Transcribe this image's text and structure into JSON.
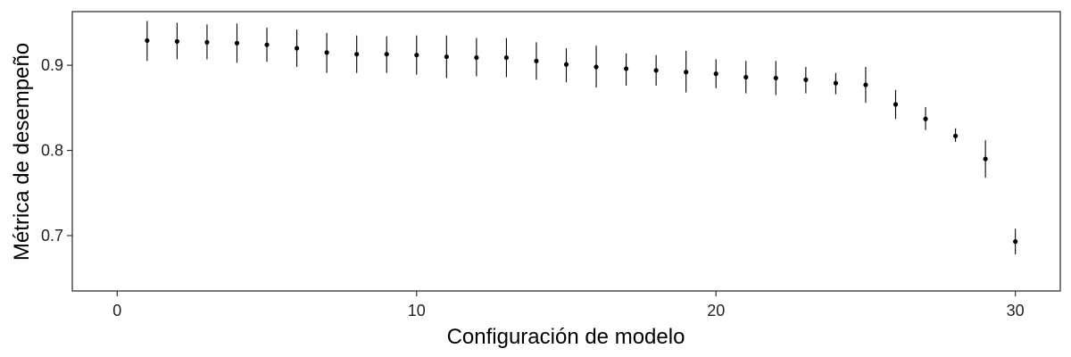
{
  "chart_data": {
    "type": "scatter",
    "title": "",
    "xlabel": "Configuración de modelo",
    "ylabel": "Métrica de desempeño",
    "xlim": [
      -1.5,
      31.5
    ],
    "ylim": [
      0.635,
      0.963
    ],
    "xticks": [
      0,
      10,
      20,
      30
    ],
    "yticks": [
      0.7,
      0.8,
      0.9
    ],
    "xtick_labels": [
      "0",
      "10",
      "20",
      "30"
    ],
    "ytick_labels": [
      "0.7",
      "0.8",
      "0.9"
    ],
    "grid": false,
    "legend": "none",
    "series": [
      {
        "x": [
          1,
          2,
          3,
          4,
          5,
          6,
          7,
          8,
          9,
          10,
          11,
          12,
          13,
          14,
          15,
          16,
          17,
          18,
          19,
          20,
          21,
          22,
          23,
          24,
          25,
          26,
          27,
          28,
          29,
          30
        ],
        "y": [
          0.929,
          0.928,
          0.927,
          0.926,
          0.924,
          0.92,
          0.915,
          0.913,
          0.913,
          0.912,
          0.91,
          0.909,
          0.909,
          0.905,
          0.901,
          0.898,
          0.896,
          0.894,
          0.892,
          0.89,
          0.886,
          0.885,
          0.883,
          0.879,
          0.877,
          0.854,
          0.837,
          0.817,
          0.79,
          0.693
        ],
        "y_low": [
          0.905,
          0.907,
          0.907,
          0.903,
          0.904,
          0.898,
          0.891,
          0.891,
          0.891,
          0.889,
          0.885,
          0.887,
          0.886,
          0.883,
          0.88,
          0.874,
          0.876,
          0.876,
          0.868,
          0.873,
          0.867,
          0.865,
          0.867,
          0.866,
          0.856,
          0.837,
          0.824,
          0.81,
          0.768,
          0.678
        ],
        "y_high": [
          0.952,
          0.95,
          0.948,
          0.949,
          0.944,
          0.942,
          0.938,
          0.935,
          0.934,
          0.935,
          0.935,
          0.932,
          0.932,
          0.927,
          0.92,
          0.923,
          0.914,
          0.912,
          0.917,
          0.907,
          0.905,
          0.905,
          0.898,
          0.891,
          0.898,
          0.871,
          0.851,
          0.826,
          0.812,
          0.708
        ]
      }
    ]
  },
  "colors": {
    "point": "#000000",
    "error_bar": "#000000",
    "axes": "#333333",
    "text": "#222222"
  }
}
